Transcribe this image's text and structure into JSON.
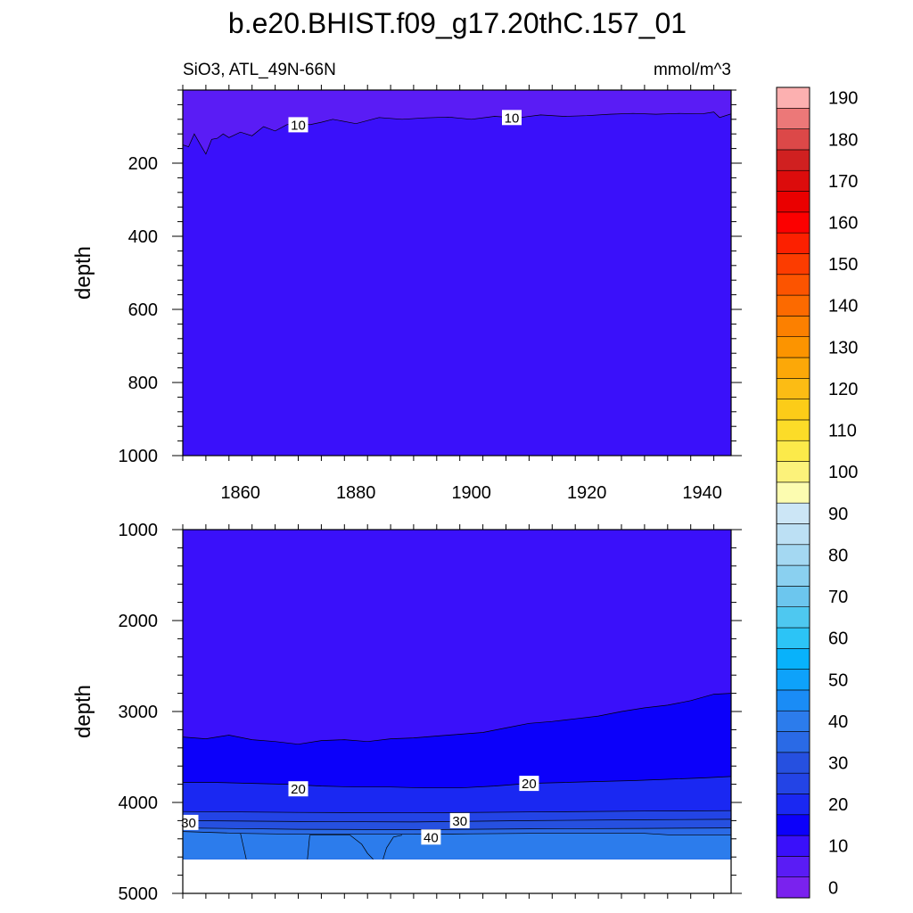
{
  "chart_data": {
    "type": "heatmap",
    "title": "b.e20.BHIST.f09_g17.20thC.157_01",
    "left_string": "SiO3, ATL_49N-66N",
    "right_string": "mmol/m^3",
    "ylabel": "depth",
    "xlim": [
      1850,
      1945
    ],
    "x_ticks": [
      1860,
      1880,
      1900,
      1920,
      1940
    ],
    "x_tick_labels": [
      "1860",
      "1880",
      "1900",
      "1920",
      "1940"
    ],
    "contour_interval": 5,
    "panels": [
      {
        "name": "upper",
        "ylim": [
          0,
          1000
        ],
        "y_ticks": [
          200,
          400,
          600,
          800,
          1000
        ],
        "y_tick_labels": [
          "200",
          "400",
          "600",
          "800",
          "1000"
        ],
        "background_level": 10,
        "contours": [
          {
            "level": 10,
            "fill_above_level": 5,
            "x": [
              1850,
              1851,
              1852,
              1853,
              1854,
              1855,
              1856,
              1857,
              1858,
              1860,
              1862,
              1864,
              1866,
              1868,
              1870,
              1872,
              1874,
              1876,
              1880,
              1884,
              1888,
              1892,
              1896,
              1900,
              1904,
              1908,
              1912,
              1916,
              1920,
              1924,
              1928,
              1932,
              1936,
              1940,
              1942,
              1943,
              1945
            ],
            "depth": [
              150,
              155,
              120,
              148,
              175,
              135,
              132,
              120,
              130,
              115,
              125,
              100,
              112,
              95,
              88,
              95,
              88,
              80,
              92,
              75,
              80,
              76,
              74,
              80,
              72,
              76,
              68,
              72,
              70,
              66,
              64,
              66,
              64,
              65,
              60,
              75,
              65
            ]
          }
        ],
        "contour_labels": [
          {
            "text": "10",
            "x": 1870,
            "depth": 95
          },
          {
            "text": "10",
            "x": 1907,
            "depth": 75
          }
        ]
      },
      {
        "name": "lower",
        "ylim": [
          1000,
          5000
        ],
        "y_ticks": [
          1000,
          2000,
          3000,
          4000,
          5000
        ],
        "y_tick_labels": [
          "1000",
          "2000",
          "3000",
          "4000",
          "5000"
        ],
        "data_bottom": 4625,
        "background_level": 10,
        "contours": [
          {
            "level": 15,
            "x": [
              1850,
              1854,
              1858,
              1862,
              1866,
              1870,
              1874,
              1878,
              1882,
              1886,
              1890,
              1894,
              1898,
              1902,
              1906,
              1910,
              1914,
              1918,
              1922,
              1926,
              1930,
              1934,
              1938,
              1942,
              1945
            ],
            "depth": [
              3280,
              3300,
              3260,
              3310,
              3330,
              3360,
              3320,
              3310,
              3330,
              3300,
              3290,
              3270,
              3250,
              3230,
              3180,
              3130,
              3110,
              3080,
              3050,
              3000,
              2960,
              2930,
              2880,
              2810,
              2800
            ]
          },
          {
            "level": 20,
            "x": [
              1850,
              1856,
              1862,
              1868,
              1874,
              1880,
              1886,
              1892,
              1898,
              1904,
              1910,
              1916,
              1922,
              1928,
              1934,
              1940,
              1945
            ],
            "depth": [
              3780,
              3780,
              3790,
              3800,
              3820,
              3830,
              3830,
              3840,
              3840,
              3820,
              3790,
              3780,
              3770,
              3760,
              3745,
              3730,
              3715
            ]
          },
          {
            "level": 25,
            "x": [
              1850,
              1870,
              1890,
              1910,
              1930,
              1945
            ],
            "depth": [
              4100,
              4110,
              4115,
              4105,
              4095,
              4090
            ]
          },
          {
            "level": 30,
            "x": [
              1850,
              1870,
              1890,
              1910,
              1930,
              1945
            ],
            "depth": [
              4200,
              4210,
              4215,
              4200,
              4190,
              4185
            ]
          },
          {
            "level": 35,
            "x": [
              1850,
              1870,
              1890,
              1910,
              1930,
              1945
            ],
            "depth": [
              4280,
              4295,
              4300,
              4290,
              4285,
              4280
            ]
          },
          {
            "level": 40,
            "x": [
              1850,
              1860,
              1870,
              1880,
              1890,
              1900,
              1910,
              1920,
              1930,
              1935,
              1945
            ],
            "depth": [
              4320,
              4340,
              4350,
              4350,
              4350,
              4345,
              4340,
              4340,
              4340,
              4360,
              4360
            ]
          }
        ],
        "contour_labels": [
          {
            "text": "20",
            "x": 1870,
            "depth": 3850
          },
          {
            "text": "20",
            "x": 1910,
            "depth": 3790
          },
          {
            "text": "30",
            "x": 1851,
            "depth": 4220
          },
          {
            "text": "30",
            "x": 1898,
            "depth": 4200
          },
          {
            "text": "40",
            "x": 1893,
            "depth": 4380
          }
        ],
        "bottom_features": [
          {
            "x": [
              1860,
              1861
            ],
            "depth": [
              4340,
              4625
            ]
          },
          {
            "x": [
              1872,
              1871.6
            ],
            "depth": [
              4360,
              4625
            ]
          },
          {
            "x": [
              1872,
              1879,
              1881,
              1882,
              1883
            ],
            "depth": [
              4360,
              4360,
              4460,
              4560,
              4625
            ]
          },
          {
            "x": [
              1884.7,
              1885.3,
              1886.5,
              1888
            ],
            "depth": [
              4625,
              4500,
              4380,
              4360
            ]
          }
        ]
      }
    ],
    "colorbar": {
      "levels": [
        0,
        5,
        10,
        15,
        20,
        25,
        30,
        35,
        40,
        45,
        50,
        55,
        60,
        65,
        70,
        75,
        80,
        85,
        90,
        95,
        100,
        105,
        110,
        115,
        120,
        125,
        130,
        135,
        140,
        145,
        150,
        155,
        160,
        165,
        170,
        175,
        180,
        185,
        190
      ],
      "tick_labels": [
        "0",
        "10",
        "20",
        "30",
        "40",
        "50",
        "60",
        "70",
        "80",
        "90",
        "100",
        "110",
        "120",
        "130",
        "140",
        "150",
        "160",
        "170",
        "180",
        "190"
      ],
      "colors": [
        "#7a22ee",
        "#5a1cf5",
        "#3a10fa",
        "#0c00fa",
        "#1a28f2",
        "#2344e6",
        "#2650e0",
        "#2a6ae6",
        "#2c7cec",
        "#1a8cf6",
        "#0ea2fa",
        "#08b2fb",
        "#2cc4f6",
        "#4ec8f0",
        "#6cc6ee",
        "#8ad0f0",
        "#a4d8f2",
        "#bce0f4",
        "#cce6f6",
        "#fcfcb0",
        "#fcf27a",
        "#fcea4a",
        "#fcdc28",
        "#fccc18",
        "#fcbc14",
        "#fca808",
        "#fc9400",
        "#fc8000",
        "#fc6a00",
        "#fc5400",
        "#fc3c00",
        "#fc2000",
        "#fc0000",
        "#ea0000",
        "#dc0c0c",
        "#d02020",
        "#dc4848",
        "#ec7878",
        "#fcb0b0"
      ]
    }
  }
}
